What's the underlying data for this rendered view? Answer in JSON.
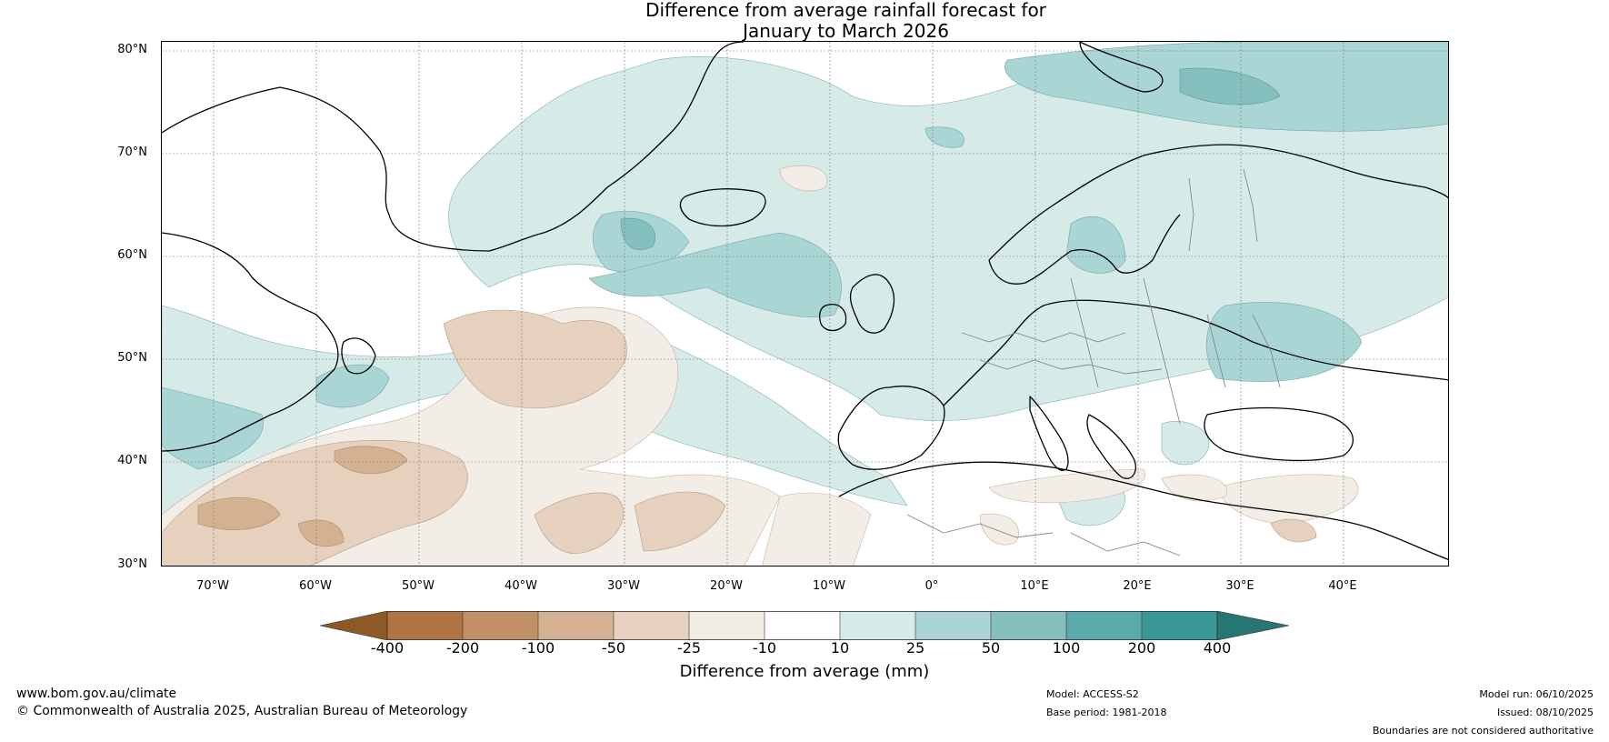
{
  "title": {
    "line1": "Difference from average rainfall forecast for",
    "line2": "January to March 2026"
  },
  "axes": {
    "lat_labels": [
      "80°N",
      "70°N",
      "60°N",
      "50°N",
      "40°N",
      "30°N"
    ],
    "lon_labels": [
      "70°W",
      "60°W",
      "50°W",
      "40°W",
      "30°W",
      "20°W",
      "10°W",
      "0°",
      "10°E",
      "20°E",
      "30°E",
      "40°E"
    ]
  },
  "colorbar": {
    "title": "Difference from average (mm)",
    "ticks": [
      "-400",
      "-200",
      "-100",
      "-50",
      "-25",
      "-10",
      "10",
      "25",
      "50",
      "100",
      "200",
      "400"
    ],
    "colors": {
      "below_min": "#8c5a28",
      "b1": "#ae7443",
      "b2": "#c19067",
      "b3": "#d4b291",
      "b4": "#e6d1be",
      "b5": "#f2ede6",
      "b6": "#ffffff",
      "b7": "#d6eae8",
      "b8": "#aad5d5",
      "b9": "#85c0bf",
      "b10": "#5aaaac",
      "b11": "#3a9899",
      "above_max": "#277575"
    }
  },
  "footer": {
    "website": "www.bom.gov.au/climate",
    "copyright": "© Commonwealth of Australia 2025, Australian Bureau of Meteorology",
    "model": "Model: ACCESS-S2",
    "base_period": "Base period: 1981-2018",
    "model_run": "Model run: 06/10/2025",
    "issued": "Issued: 08/10/2025",
    "disclaimer": "Boundaries are not considered authoritative"
  }
}
